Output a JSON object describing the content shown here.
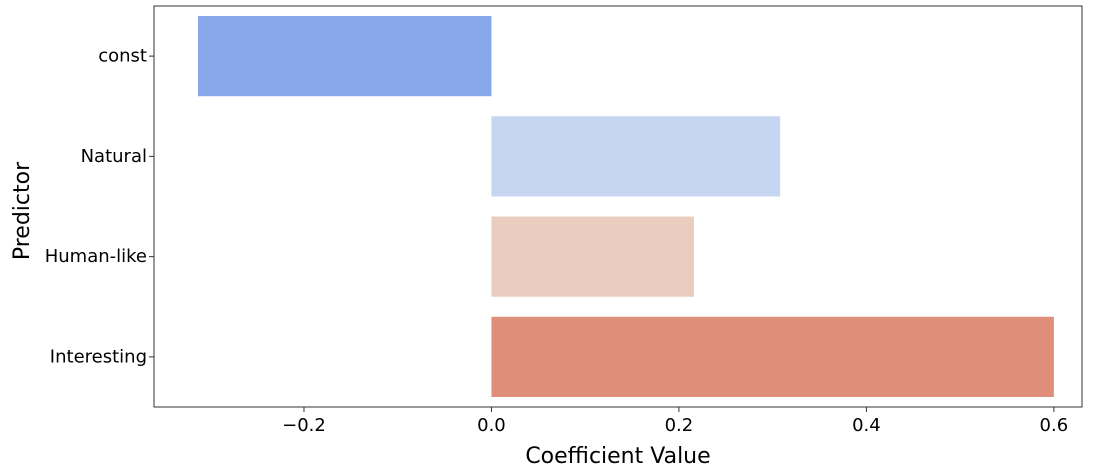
{
  "chart_data": {
    "type": "bar",
    "orientation": "horizontal",
    "title": "",
    "xlabel": "Coefficient Value",
    "ylabel": "Predictor",
    "categories": [
      "const",
      "Natural",
      "Human-like",
      "Interesting"
    ],
    "values": [
      -0.313,
      0.308,
      0.216,
      0.6
    ],
    "bar_colors": [
      "#88a6ea",
      "#c6d5f0",
      "#eacdbf",
      "#de8e79"
    ],
    "xlim": [
      -0.36,
      0.63
    ],
    "xticks": [
      -0.2,
      0.0,
      0.2,
      0.4,
      0.6
    ],
    "xtick_labels": [
      "−0.2",
      "0.0",
      "0.2",
      "0.4",
      "0.6"
    ],
    "grid": false,
    "legend": "none"
  }
}
